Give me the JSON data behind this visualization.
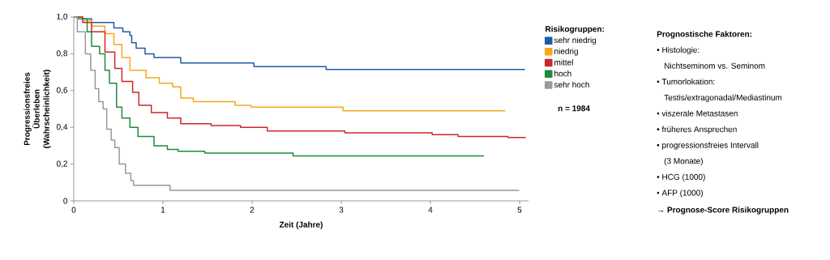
{
  "chart_data": {
    "type": "step",
    "xlabel": "Zeit (Jahre)",
    "ylabel": "Progressionsfreies Überleben (Wahrscheinlichkeit)",
    "legend_title": "Risikogruppen:",
    "legend": "right",
    "xlim": [
      0,
      5.1
    ],
    "ylim": [
      0,
      1
    ],
    "xticks": [
      0,
      1,
      2,
      3,
      4,
      5
    ],
    "yticks": [
      {
        "value": 0,
        "label": "0"
      },
      {
        "value": 0.2,
        "label": "0,2"
      },
      {
        "value": 0.4,
        "label": "0,4"
      },
      {
        "value": 0.6,
        "label": "0,6"
      },
      {
        "value": 0.8,
        "label": "0,8"
      },
      {
        "value": 1,
        "label": "1,0"
      }
    ],
    "series": [
      {
        "name": "sehr niedrig",
        "color": "#1f5aa6",
        "x": [
          0,
          0.1,
          0.2,
          0.45,
          0.55,
          0.63,
          0.65,
          0.7,
          0.8,
          0.9,
          1.2,
          2.02,
          2.83,
          5.06
        ],
        "values": [
          1,
          0.99,
          0.97,
          0.94,
          0.92,
          0.9,
          0.86,
          0.83,
          0.8,
          0.78,
          0.75,
          0.73,
          0.715,
          0.715
        ]
      },
      {
        "name": "niedrig",
        "color": "#f5a81c",
        "x": [
          0,
          0.1,
          0.2,
          0.35,
          0.45,
          0.54,
          0.63,
          0.81,
          0.96,
          1.11,
          1.2,
          1.34,
          1.81,
          1.99,
          3.02,
          4.84
        ],
        "values": [
          1,
          0.98,
          0.95,
          0.91,
          0.85,
          0.78,
          0.71,
          0.67,
          0.64,
          0.62,
          0.56,
          0.54,
          0.52,
          0.51,
          0.49,
          0.49
        ]
      },
      {
        "name": "mittel",
        "color": "#d0262a",
        "x": [
          0,
          0.1,
          0.2,
          0.35,
          0.46,
          0.54,
          0.66,
          0.73,
          0.87,
          1.05,
          1.2,
          1.54,
          1.87,
          2.17,
          3.04,
          3.26,
          4.02,
          4.31,
          4.87,
          5.07
        ],
        "values": [
          1,
          0.97,
          0.92,
          0.81,
          0.72,
          0.65,
          0.59,
          0.52,
          0.48,
          0.45,
          0.42,
          0.41,
          0.4,
          0.38,
          0.37,
          0.37,
          0.36,
          0.35,
          0.345,
          0.345
        ]
      },
      {
        "name": "hoch",
        "color": "#1e8a3a",
        "x": [
          0,
          0.05,
          0.15,
          0.2,
          0.29,
          0.35,
          0.4,
          0.48,
          0.54,
          0.63,
          0.72,
          0.9,
          1.05,
          1.17,
          1.47,
          2.46,
          4.6
        ],
        "values": [
          1,
          0.99,
          0.92,
          0.84,
          0.8,
          0.71,
          0.64,
          0.51,
          0.45,
          0.4,
          0.35,
          0.3,
          0.28,
          0.27,
          0.26,
          0.245,
          0.245
        ]
      },
      {
        "name": "sehr hoch",
        "color": "#999999",
        "x": [
          0,
          0.04,
          0.13,
          0.19,
          0.24,
          0.28,
          0.33,
          0.37,
          0.42,
          0.46,
          0.51,
          0.58,
          0.64,
          0.67,
          1.08,
          4.99
        ],
        "values": [
          1,
          0.92,
          0.8,
          0.71,
          0.61,
          0.54,
          0.5,
          0.39,
          0.33,
          0.29,
          0.2,
          0.15,
          0.11,
          0.085,
          0.057,
          0.055
        ]
      }
    ],
    "annotations": [
      "n = 1984",
      "Prognostische Faktoren:",
      "• Histologie:",
      "Nichtseminom vs. Seminom",
      "• Tumorlokation:",
      "Testis/extragonadal/Mediastinum",
      "• viszerale Metastasen",
      "• früheres Ansprechen",
      "• progressionsfreies Intervall",
      "(3 Monate)",
      "• HCG (1000)",
      "• AFP (1000)",
      "→ Prognose-Score Risikogruppen"
    ]
  }
}
